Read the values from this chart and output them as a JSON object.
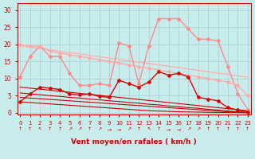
{
  "title": "",
  "xlabel": "Vent moyen/en rafales ( km/h )",
  "background_color": "#c8ecec",
  "grid_color": "#b0d8d8",
  "x_ticks": [
    0,
    1,
    2,
    3,
    4,
    5,
    6,
    7,
    8,
    9,
    10,
    11,
    12,
    13,
    14,
    15,
    16,
    17,
    18,
    19,
    20,
    21,
    22,
    23
  ],
  "y_ticks": [
    0,
    5,
    10,
    15,
    20,
    25,
    30
  ],
  "ylim": [
    -0.5,
    32
  ],
  "xlim": [
    -0.3,
    23.3
  ],
  "series": [
    {
      "comment": "light pink upper line - declining straight-ish",
      "x": [
        0,
        1,
        2,
        3,
        4,
        5,
        6,
        7,
        8,
        9,
        10,
        11,
        12,
        13,
        14,
        15,
        16,
        17,
        18,
        19,
        20,
        21,
        22,
        23
      ],
      "y": [
        19.5,
        19.2,
        18.8,
        18.4,
        18.0,
        17.6,
        17.2,
        16.8,
        16.4,
        16.0,
        15.6,
        15.2,
        14.8,
        14.4,
        14.0,
        13.6,
        13.2,
        12.8,
        12.4,
        12.0,
        11.6,
        11.2,
        10.8,
        10.4
      ],
      "color": "#ffb0b0",
      "lw": 1.0,
      "marker": null,
      "ms": 0
    },
    {
      "comment": "light pink - jagged line with markers, starts at 10.5, peaks around 19-20 then falls",
      "x": [
        0,
        1,
        2,
        3,
        4,
        5,
        6,
        7,
        8,
        9,
        10,
        11,
        12,
        13,
        14,
        15,
        16,
        17,
        18,
        19,
        20,
        21,
        22,
        23
      ],
      "y": [
        10.5,
        16.5,
        19.5,
        16.5,
        16.5,
        11.5,
        8.0,
        8.0,
        8.5,
        8.0,
        20.5,
        19.5,
        8.5,
        19.5,
        27.5,
        27.5,
        27.5,
        24.5,
        21.5,
        21.5,
        21.0,
        13.5,
        5.5,
        1.0
      ],
      "color": "#ff8888",
      "lw": 1.0,
      "marker": "D",
      "ms": 2.0
    },
    {
      "comment": "medium pink - gradually declining from ~20 to ~5",
      "x": [
        0,
        1,
        2,
        3,
        4,
        5,
        6,
        7,
        8,
        9,
        10,
        11,
        12,
        13,
        14,
        15,
        16,
        17,
        18,
        19,
        20,
        21,
        22,
        23
      ],
      "y": [
        20.0,
        19.5,
        19.5,
        18.0,
        17.5,
        17.0,
        16.5,
        16.0,
        15.5,
        15.0,
        14.5,
        14.0,
        13.5,
        13.0,
        12.5,
        12.0,
        11.5,
        11.0,
        10.5,
        10.0,
        9.5,
        9.0,
        8.0,
        5.0
      ],
      "color": "#ffaaaa",
      "lw": 1.0,
      "marker": "D",
      "ms": 2.0
    },
    {
      "comment": "dark red - jagged main line with markers",
      "x": [
        0,
        1,
        2,
        3,
        4,
        5,
        6,
        7,
        8,
        9,
        10,
        11,
        12,
        13,
        14,
        15,
        16,
        17,
        18,
        19,
        20,
        21,
        22,
        23
      ],
      "y": [
        3.2,
        5.5,
        7.5,
        7.2,
        6.8,
        5.5,
        5.2,
        5.5,
        4.8,
        4.5,
        9.5,
        8.5,
        7.5,
        9.0,
        12.0,
        11.0,
        11.5,
        10.5,
        4.5,
        4.0,
        3.5,
        1.5,
        0.8,
        0.3
      ],
      "color": "#dd0000",
      "lw": 1.0,
      "marker": "D",
      "ms": 2.0
    },
    {
      "comment": "dark red - upper declining line from 7.5",
      "x": [
        0,
        1,
        2,
        3,
        4,
        5,
        6,
        7,
        8,
        9,
        10,
        11,
        12,
        13,
        14,
        15,
        16,
        17,
        18,
        19,
        20,
        21,
        22,
        23
      ],
      "y": [
        7.5,
        7.2,
        6.9,
        6.6,
        6.3,
        6.0,
        5.7,
        5.4,
        5.1,
        4.8,
        4.5,
        4.2,
        3.9,
        3.6,
        3.3,
        3.0,
        2.7,
        2.4,
        2.1,
        1.8,
        1.5,
        1.2,
        0.9,
        0.6
      ],
      "color": "#cc0000",
      "lw": 0.8,
      "marker": null,
      "ms": 0
    },
    {
      "comment": "dark red - declining from 5.5",
      "x": [
        0,
        1,
        2,
        3,
        4,
        5,
        6,
        7,
        8,
        9,
        10,
        11,
        12,
        13,
        14,
        15,
        16,
        17,
        18,
        19,
        20,
        21,
        22,
        23
      ],
      "y": [
        5.8,
        5.5,
        5.3,
        5.0,
        4.8,
        4.5,
        4.3,
        4.0,
        3.8,
        3.5,
        3.3,
        3.0,
        2.8,
        2.5,
        2.3,
        2.0,
        1.8,
        1.5,
        1.3,
        1.0,
        0.8,
        0.5,
        0.3,
        0.1
      ],
      "color": "#cc0000",
      "lw": 0.8,
      "marker": null,
      "ms": 0
    },
    {
      "comment": "dark red - declining from 4.5",
      "x": [
        0,
        1,
        2,
        3,
        4,
        5,
        6,
        7,
        8,
        9,
        10,
        11,
        12,
        13,
        14,
        15,
        16,
        17,
        18,
        19,
        20,
        21,
        22,
        23
      ],
      "y": [
        4.5,
        4.3,
        4.1,
        3.9,
        3.7,
        3.5,
        3.3,
        3.1,
        2.9,
        2.7,
        2.5,
        2.3,
        2.1,
        1.9,
        1.7,
        1.5,
        1.3,
        1.1,
        0.9,
        0.7,
        0.5,
        0.3,
        0.2,
        0.05
      ],
      "color": "#cc0000",
      "lw": 0.8,
      "marker": null,
      "ms": 0
    },
    {
      "comment": "dark red - declining from 3.2",
      "x": [
        0,
        1,
        2,
        3,
        4,
        5,
        6,
        7,
        8,
        9,
        10,
        11,
        12,
        13,
        14,
        15,
        16,
        17,
        18,
        19,
        20,
        21,
        22,
        23
      ],
      "y": [
        3.2,
        3.0,
        2.8,
        2.6,
        2.4,
        2.2,
        2.0,
        1.8,
        1.6,
        1.4,
        1.2,
        1.0,
        0.8,
        0.6,
        0.5,
        0.4,
        0.3,
        0.25,
        0.2,
        0.15,
        0.1,
        0.08,
        0.05,
        0.02
      ],
      "color": "#cc0000",
      "lw": 0.8,
      "marker": null,
      "ms": 0
    }
  ],
  "arrow_symbols": [
    "↑",
    "↑",
    "↖",
    "↑",
    "↑",
    "↗",
    "↗",
    "↑",
    "↗",
    "→",
    "→",
    "↗",
    "↑",
    "↖",
    "↑",
    "→",
    "→",
    "↗",
    "↗",
    "↑",
    "↑",
    "↑",
    "↑",
    "↑"
  ],
  "xlabel_color": "#cc0000",
  "tick_color": "#cc0000",
  "label_fontsize": 6.5
}
